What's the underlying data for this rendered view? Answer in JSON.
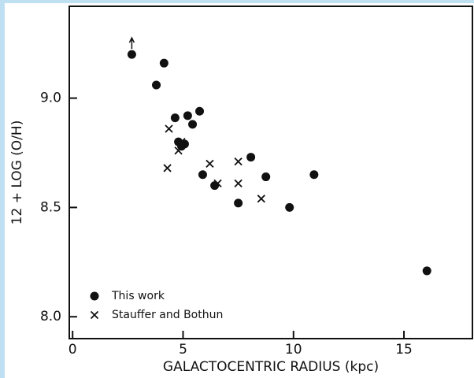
{
  "chart_data": {
    "type": "scatter",
    "xlabel": "GALACTOCENTRIC RADIUS (kpc)",
    "ylabel": "12 + LOG (O/H)",
    "xlim": [
      -0.15,
      18.1
    ],
    "ylim": [
      7.9,
      9.42
    ],
    "xticks": [
      0,
      5,
      10,
      15
    ],
    "yticks": [
      {
        "value": 8,
        "label": "8.0"
      },
      8.5,
      {
        "value": 9,
        "label": "9.0"
      }
    ],
    "legend": "lower left",
    "series": [
      {
        "name": "This work",
        "marker": "circle",
        "color": "#111111",
        "x": [
          2.68,
          4.14,
          3.79,
          4.64,
          5.21,
          5.75,
          5.43,
          4.79,
          5.07,
          4.93,
          8.07,
          5.89,
          6.43,
          7.5,
          8.75,
          9.82,
          10.93,
          16.04
        ],
        "y": [
          9.2,
          9.16,
          9.06,
          8.91,
          8.92,
          8.94,
          8.88,
          8.8,
          8.79,
          8.78,
          8.73,
          8.65,
          8.6,
          8.52,
          8.64,
          8.5,
          8.65,
          8.21
        ],
        "lower_limit_points": [
          0
        ]
      },
      {
        "name": "Stauffer and Bothun",
        "marker": "x",
        "color": "#111111",
        "x": [
          4.36,
          4.29,
          4.79,
          4.93,
          6.21,
          6.57,
          7.5,
          7.5,
          8.54
        ],
        "y": [
          8.86,
          8.68,
          8.76,
          8.8,
          8.7,
          8.61,
          8.71,
          8.61,
          8.54
        ]
      }
    ]
  }
}
